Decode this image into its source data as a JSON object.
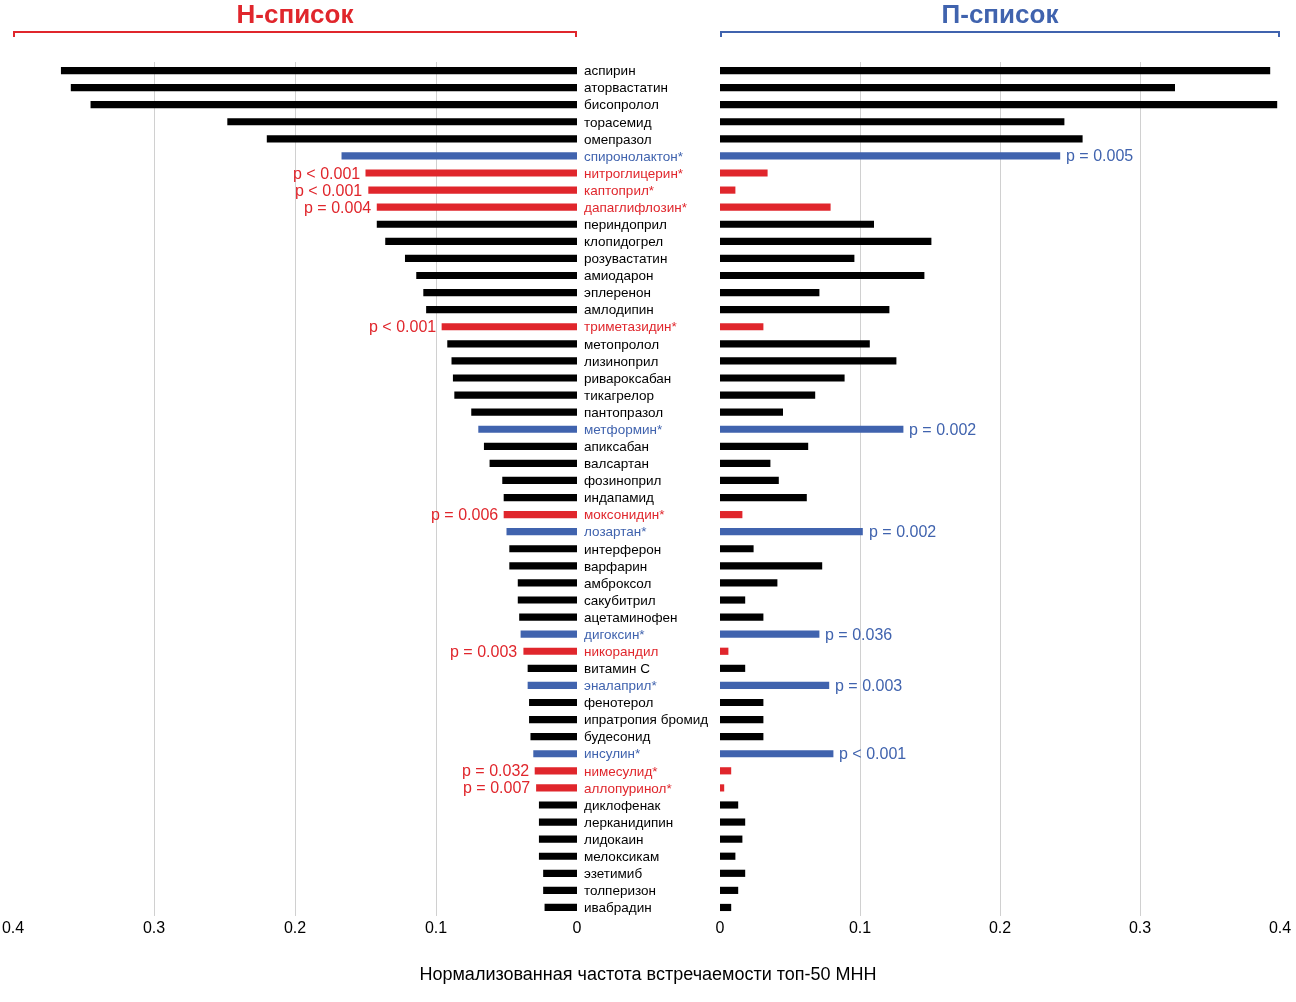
{
  "chart_data": [
    {
      "type": "bar",
      "orientation": "horizontal",
      "title": "Н-список",
      "xlabel": "Нормализованная частота встречаемости топ-50 МНН",
      "categories": [
        "аспирин",
        "аторвастатин",
        "бисопролол",
        "торасемид",
        "омепразол",
        "спиронолактон*",
        "нитроглицерин*",
        "каптоприл*",
        "дапаглифлозин*",
        "периндоприл",
        "клопидогрел",
        "розувастатин",
        "амиодарон",
        "эплеренон",
        "амлодипин",
        "триметазидин*",
        "метопролол",
        "лизиноприл",
        "ривароксабан",
        "тикагрелор",
        "пантопразол",
        "метформин*",
        "апиксабан",
        "валсартан",
        "фозиноприл",
        "индапамид",
        "моксонидин*",
        "лозартан*",
        "интерферон",
        "варфарин",
        "амброксол",
        "сакубитрил",
        "ацетаминофен",
        "дигоксин*",
        "никорандил",
        "витамин С",
        "эналаприл*",
        "фенотерол",
        "ипратропия бромид",
        "будесонид",
        "инсулин*",
        "нимесулид*",
        "аллопуринол*",
        "диклофенак",
        "лерканидипин",
        "лидокаин",
        "мелоксикам",
        "эзетимиб",
        "толперизон",
        "ивабрадин"
      ],
      "values": [
        0.366,
        0.359,
        0.345,
        0.248,
        0.22,
        0.167,
        0.15,
        0.148,
        0.142,
        0.142,
        0.136,
        0.122,
        0.114,
        0.109,
        0.107,
        0.096,
        0.092,
        0.089,
        0.088,
        0.087,
        0.075,
        0.07,
        0.066,
        0.062,
        0.053,
        0.052,
        0.052,
        0.05,
        0.048,
        0.048,
        0.042,
        0.042,
        0.041,
        0.04,
        0.038,
        0.035,
        0.035,
        0.034,
        0.034,
        0.033,
        0.031,
        0.03,
        0.029,
        0.027,
        0.027,
        0.027,
        0.027,
        0.024,
        0.024,
        0.023
      ],
      "colors": [
        "#000000",
        "#000000",
        "#000000",
        "#000000",
        "#000000",
        "#4063ae",
        "#e0262c",
        "#e0262c",
        "#e0262c",
        "#000000",
        "#000000",
        "#000000",
        "#000000",
        "#000000",
        "#000000",
        "#e0262c",
        "#000000",
        "#000000",
        "#000000",
        "#000000",
        "#000000",
        "#4063ae",
        "#000000",
        "#000000",
        "#000000",
        "#000000",
        "#e0262c",
        "#4063ae",
        "#000000",
        "#000000",
        "#000000",
        "#000000",
        "#000000",
        "#4063ae",
        "#e0262c",
        "#000000",
        "#4063ae",
        "#000000",
        "#000000",
        "#000000",
        "#4063ae",
        "#e0262c",
        "#e0262c",
        "#000000",
        "#000000",
        "#000000",
        "#000000",
        "#000000",
        "#000000",
        "#000000"
      ],
      "xlim": [
        0.4,
        0
      ],
      "xticks": [
        0.4,
        0.3,
        0.2,
        0.1,
        0
      ],
      "grid": "x",
      "legend": false,
      "annotations": [
        {
          "text": "p < 0.001",
          "x": 0.15,
          "y": "нитроглицерин*"
        },
        {
          "text": "p < 0.001",
          "x": 0.148,
          "y": "каптоприл*"
        },
        {
          "text": "p = 0.004",
          "x": 0.142,
          "y": "дапаглифлозин*"
        },
        {
          "text": "p < 0.001",
          "x": 0.096,
          "y": "триметазидин*"
        },
        {
          "text": "p = 0.006",
          "x": 0.052,
          "y": "моксонидин*"
        },
        {
          "text": "p = 0.003",
          "x": 0.038,
          "y": "никорандил"
        },
        {
          "text": "p = 0.032",
          "x": 0.03,
          "y": "нимесулид*"
        },
        {
          "text": "p = 0.007",
          "x": 0.029,
          "y": "аллопуринол*"
        }
      ]
    },
    {
      "type": "bar",
      "orientation": "horizontal",
      "title": "П-список",
      "tick_labels": "x",
      "categories": [
        "аспирин",
        "аторвастатин",
        "бисопролол",
        "торасемид",
        "омепразол",
        "спиронолактон*",
        "нитроглицерин*",
        "каптоприл*",
        "дапаглифлозин*",
        "периндоприл",
        "клопидогрел",
        "розувастатин",
        "амиодарон",
        "эплеренон",
        "амлодипин",
        "триметазидин*",
        "метопролол",
        "лизиноприл",
        "ривароксабан",
        "тикагрелор",
        "пантопразол",
        "метформин*",
        "апиксабан",
        "валсартан",
        "фозиноприл",
        "индапамид",
        "моксонидин*",
        "лозартан*",
        "интерферон",
        "варфарин",
        "амброксол",
        "сакубитрил",
        "ацетаминофен",
        "дигоксин*",
        "никорандил",
        "витамин С",
        "эналаприл*",
        "фенотерол",
        "ипратропия бромид",
        "будесонид",
        "инсулин*",
        "нимесулид*",
        "аллопуринол*",
        "диклофенак",
        "лерканидипин",
        "лидокаин",
        "мелоксикам",
        "эзетимиб",
        "толперизон",
        "ивабрадин"
      ],
      "values": [
        0.393,
        0.325,
        0.398,
        0.246,
        0.259,
        0.243,
        0.034,
        0.011,
        0.079,
        0.11,
        0.151,
        0.096,
        0.146,
        0.071,
        0.121,
        0.031,
        0.107,
        0.126,
        0.089,
        0.068,
        0.045,
        0.131,
        0.063,
        0.036,
        0.042,
        0.062,
        0.016,
        0.102,
        0.024,
        0.073,
        0.041,
        0.018,
        0.031,
        0.071,
        0.006,
        0.018,
        0.078,
        0.031,
        0.031,
        0.031,
        0.081,
        0.008,
        0.003,
        0.013,
        0.018,
        0.016,
        0.011,
        0.018,
        0.013,
        0.008
      ],
      "colors": [
        "#000000",
        "#000000",
        "#000000",
        "#000000",
        "#000000",
        "#4063ae",
        "#e0262c",
        "#e0262c",
        "#e0262c",
        "#000000",
        "#000000",
        "#000000",
        "#000000",
        "#000000",
        "#000000",
        "#e0262c",
        "#000000",
        "#000000",
        "#000000",
        "#000000",
        "#000000",
        "#4063ae",
        "#000000",
        "#000000",
        "#000000",
        "#000000",
        "#e0262c",
        "#4063ae",
        "#000000",
        "#000000",
        "#000000",
        "#000000",
        "#000000",
        "#4063ae",
        "#e0262c",
        "#000000",
        "#4063ae",
        "#000000",
        "#000000",
        "#000000",
        "#4063ae",
        "#e0262c",
        "#e0262c",
        "#000000",
        "#000000",
        "#000000",
        "#000000",
        "#000000",
        "#000000",
        "#000000"
      ],
      "xlim": [
        0,
        0.4
      ],
      "xticks": [
        0,
        0.1,
        0.2,
        0.3,
        0.4
      ],
      "grid": "x",
      "legend": false,
      "annotations": [
        {
          "text": "p = 0.005",
          "x": 0.243,
          "y": "спиронолактон*"
        },
        {
          "text": "p = 0.002",
          "x": 0.131,
          "y": "метформин*"
        },
        {
          "text": "p = 0.002",
          "x": 0.102,
          "y": "лозартан*"
        },
        {
          "text": "p = 0.036",
          "x": 0.071,
          "y": "дигоксин*"
        },
        {
          "text": "p = 0.003",
          "x": 0.078,
          "y": "эналаприл*"
        },
        {
          "text": "p < 0.001",
          "x": 0.081,
          "y": "инсулин*"
        }
      ]
    }
  ]
}
